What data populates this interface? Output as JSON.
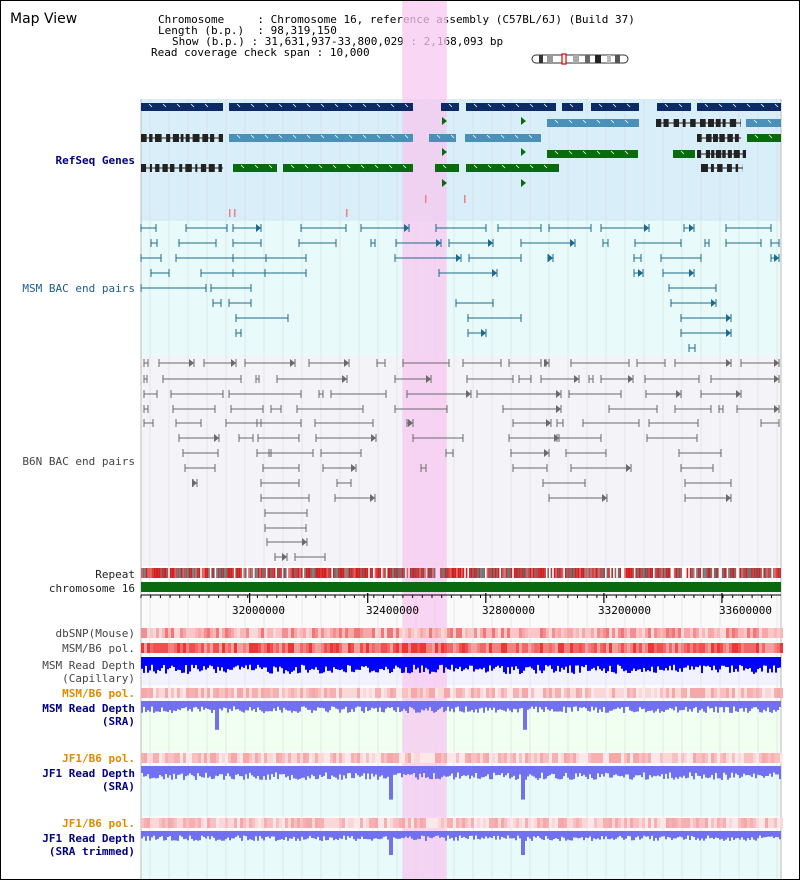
{
  "page_title": "Map View",
  "info": {
    "chromosome_key": "Chromosome",
    "chromosome_val": "Chromosome 16, reference assembly (C57BL/6J) (Build 37)",
    "length_key": "Length (b.p.)",
    "length_val": "98,319,150",
    "show_key": "Show (b.p.)",
    "show_val": "31,631,937-33,800,029 : 2,168,093 bp",
    "coverage_key": "Read coverage check span",
    "coverage_val": "10,000"
  },
  "tracks": {
    "refseq": "RefSeq Genes",
    "msm_bac": "MSM BAC end pairs",
    "b6n_bac": "B6N BAC end pairs",
    "repeat": "Repeat",
    "chromosome": "chromosome 16",
    "dbsnp": "dbSNP(Mouse)",
    "msm_pol_1": "MSM/B6 pol.",
    "msm_depth_cap_1": "MSM Read Depth",
    "msm_depth_cap_2": "(Capillary)",
    "msm_pol_2": "MSM/B6 pol.",
    "msm_depth_sra_1": "MSM Read Depth",
    "msm_depth_sra_2": "(SRA)",
    "jf1_pol_1": "JF1/B6 pol.",
    "jf1_depth_sra_1": "JF1 Read Depth",
    "jf1_depth_sra_2": "(SRA)",
    "jf1_pol_2": "JF1/B6 pol.",
    "jf1_depth_trim_1": "JF1 Read Depth",
    "jf1_depth_trim_2": "(SRA trimmed)"
  },
  "axis": {
    "ticks": [
      "32000000",
      "32400000",
      "32800000",
      "33200000",
      "33600000"
    ],
    "tick_values": [
      32000000,
      32400000,
      32800000,
      33200000,
      33600000
    ],
    "view_start": 31631937,
    "view_end": 33800029
  },
  "highlight": {
    "start": 32517000,
    "end": 32668000
  },
  "colors": {
    "refseq_bg": "#d8eef8",
    "bac_bg": "#e8fafa",
    "b6n_bg": "#f4f4f8",
    "gene_navy": "#0b2a66",
    "gene_blue": "#4a90b8",
    "gene_green": "#0a6a10",
    "msm_line": "#1e6a8c",
    "b6n_line": "#6a6a6a",
    "highlight": "#f7c8f0",
    "chromosome": "#0a6a10",
    "depth_blue": "#0000ff",
    "depth_light": "#7070f0",
    "pol_red": "#f04040",
    "label_orange": "#e08a00"
  }
}
